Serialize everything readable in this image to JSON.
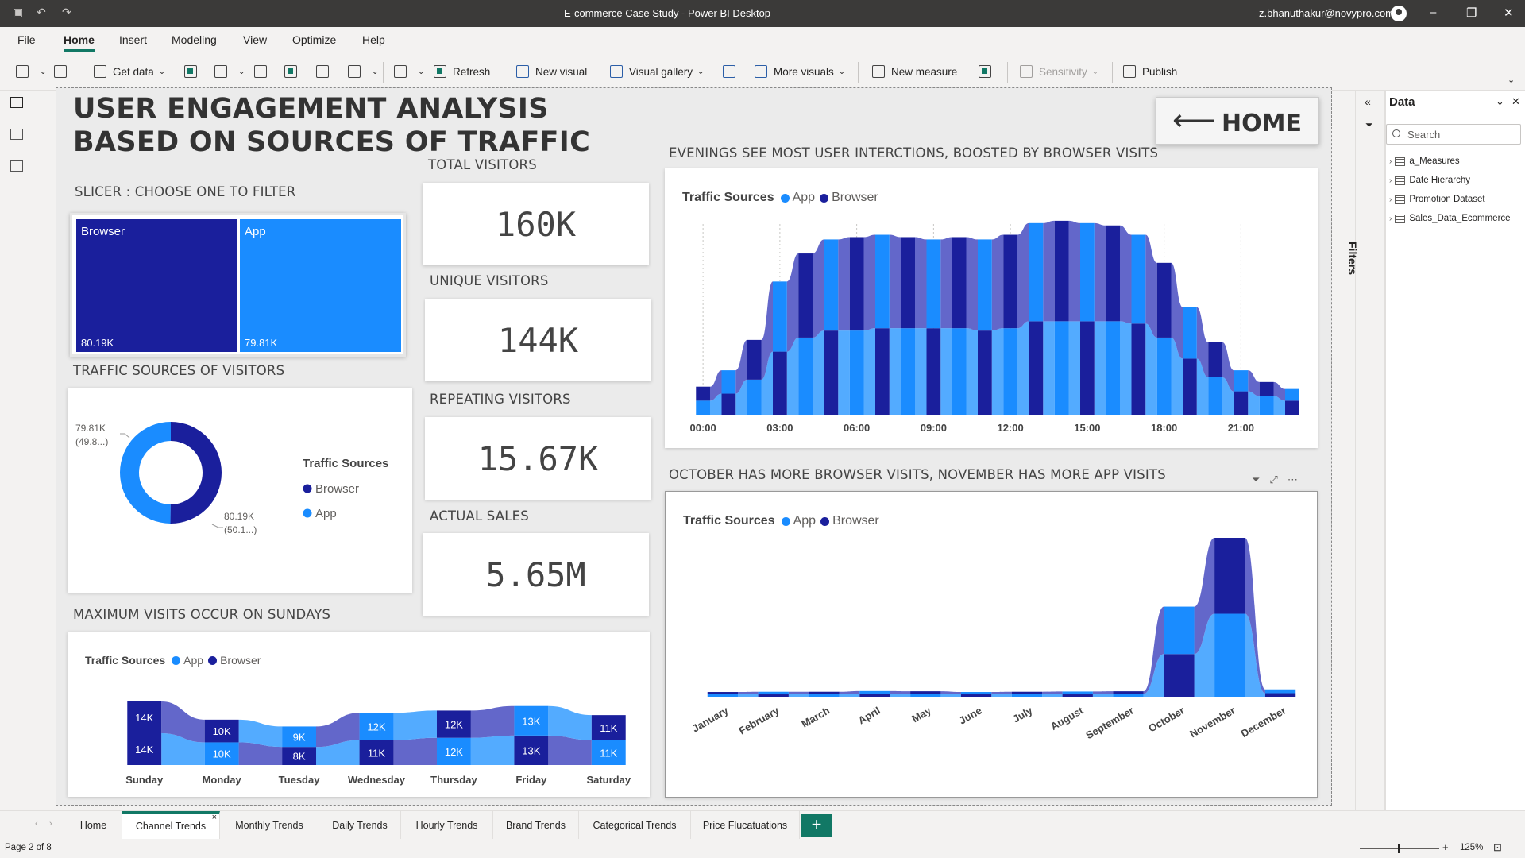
{
  "window": {
    "title": "E-commerce Case Study - Power BI Desktop",
    "user": "z.bhanuthakur@novypro.com"
  },
  "menu": {
    "items": [
      "File",
      "Home",
      "Insert",
      "Modeling",
      "View",
      "Optimize",
      "Help"
    ],
    "active": "Home"
  },
  "ribbon": {
    "get_data": "Get data",
    "refresh": "Refresh",
    "new_visual": "New visual",
    "visual_gallery": "Visual gallery",
    "more_visuals": "More visuals",
    "new_measure": "New measure",
    "sensitivity": "Sensitivity",
    "publish": "Publish"
  },
  "report": {
    "title": "USER ENGAGEMENT ANALYSIS BASED ON SOURCES OF TRAFFIC",
    "home_button": "HOME",
    "slicer": {
      "heading": "SLICER : CHOOSE ONE TO FILTER",
      "browser_label": "Browser",
      "browser_value": "80.19K",
      "app_label": "App",
      "app_value": "79.81K"
    },
    "kpis": {
      "total_visitors": {
        "label": "TOTAL VISITORS",
        "value": "160K"
      },
      "unique_visitors": {
        "label": "UNIQUE VISITORS",
        "value": "144K"
      },
      "repeating_visitors": {
        "label": "REPEATING VISITORS",
        "value": "15.67K"
      },
      "actual_sales": {
        "label": "ACTUAL SALES",
        "value": "5.65M"
      }
    },
    "donut_heading": "TRAFFIC SOURCES OF VISITORS",
    "weekday_heading": "MAXIMUM VISITS OCCUR ON SUNDAYS",
    "hourly_heading": "EVENINGS SEE MOST USER INTERCTIONS, BOOSTED BY BROWSER VISITS",
    "monthly_heading": "OCTOBER HAS MORE BROWSER VISITS, NOVEMBER HAS MORE APP VISITS"
  },
  "legend": {
    "title": "Traffic Sources",
    "app": "App",
    "browser": "Browser"
  },
  "colors": {
    "browser": "#1a1f9c",
    "app": "#1a8cff",
    "browser_band": "#5b5fc7",
    "app_band": "#4aa6ff"
  },
  "chart_data": [
    {
      "type": "pie",
      "title": "TRAFFIC SOURCES OF VISITORS",
      "legend_title": "Traffic Sources",
      "categories": [
        "Browser",
        "App"
      ],
      "values": [
        80.19,
        79.81
      ],
      "data_labels": [
        [
          "80.19K",
          "(50.1...)"
        ],
        [
          "79.81K",
          "(49.8...)"
        ]
      ],
      "legend_position": "right"
    },
    {
      "type": "area",
      "title": "MAXIMUM VISITS OCCUR ON SUNDAYS",
      "categories": [
        "Sunday",
        "Monday",
        "Tuesday",
        "Wednesday",
        "Thursday",
        "Friday",
        "Saturday"
      ],
      "series": [
        {
          "name": "Browser",
          "values": [
            14,
            10,
            8,
            11,
            12,
            13,
            11
          ],
          "labels": [
            "14K",
            "10K",
            "8K",
            "11K",
            "12K",
            "13K",
            "11K"
          ]
        },
        {
          "name": "App",
          "values": [
            14,
            10,
            9,
            12,
            12,
            13,
            11
          ],
          "labels": [
            "14K",
            "10K",
            "9K",
            "12K",
            "12K",
            "13K",
            "11K"
          ]
        }
      ],
      "legend_position": "top-left"
    },
    {
      "type": "area",
      "title": "EVENINGS SEE MOST USER INTERCTIONS, BOOSTED BY BROWSER VISITS",
      "x_ticks": [
        "00:00",
        "03:00",
        "06:00",
        "09:00",
        "12:00",
        "15:00",
        "18:00",
        "21:00"
      ],
      "x": [
        0,
        1,
        2,
        3,
        4,
        5,
        6,
        7,
        8,
        9,
        10,
        11,
        12,
        13,
        14,
        15,
        16,
        17,
        18,
        19,
        20,
        21,
        22,
        23
      ],
      "series": [
        {
          "name": "App",
          "values": [
            0.6,
            0.9,
            1.5,
            2.7,
            3.3,
            3.6,
            3.6,
            3.7,
            3.7,
            3.7,
            3.7,
            3.6,
            3.7,
            4.0,
            4.0,
            4.0,
            4.0,
            3.9,
            3.3,
            2.4,
            1.6,
            1.0,
            0.8,
            0.6
          ]
        },
        {
          "name": "Browser",
          "values": [
            0.6,
            1.0,
            1.7,
            3.0,
            3.6,
            3.9,
            4.0,
            4.0,
            3.9,
            3.8,
            3.9,
            3.9,
            4.0,
            4.2,
            4.3,
            4.2,
            4.1,
            3.8,
            3.2,
            2.2,
            1.5,
            0.9,
            0.6,
            0.5
          ]
        }
      ],
      "legend_position": "top-left"
    },
    {
      "type": "area",
      "title": "OCTOBER HAS MORE BROWSER VISITS, NOVEMBER HAS MORE APP VISITS",
      "categories": [
        "January",
        "February",
        "March",
        "April",
        "May",
        "June",
        "July",
        "August",
        "September",
        "October",
        "November",
        "December"
      ],
      "series": [
        {
          "name": "App",
          "values": [
            1.0,
            1.0,
            1.0,
            1.2,
            1.2,
            1.0,
            1.0,
            1.0,
            1.2,
            18,
            35,
            1.5
          ]
        },
        {
          "name": "Browser",
          "values": [
            1.0,
            1.1,
            1.1,
            1.2,
            1.1,
            1.0,
            1.1,
            1.2,
            1.1,
            20,
            32,
            1.6
          ]
        }
      ],
      "legend_position": "top-left"
    }
  ],
  "tabs": [
    "Home",
    "Channel Trends",
    "Monthly Trends",
    "Daily Trends",
    "Hourly Trends",
    "Brand Trends",
    "Categorical Trends",
    "Price Flucatuations"
  ],
  "active_tab": "Channel Trends",
  "status": {
    "page": "Page 2 of 8",
    "zoom": "125%"
  },
  "data_pane": {
    "title": "Data",
    "search_placeholder": "Search",
    "fields": [
      "a_Measures",
      "Date Hierarchy",
      "Promotion Dataset",
      "Sales_Data_Ecommerce"
    ]
  },
  "filters_label": "Filters"
}
